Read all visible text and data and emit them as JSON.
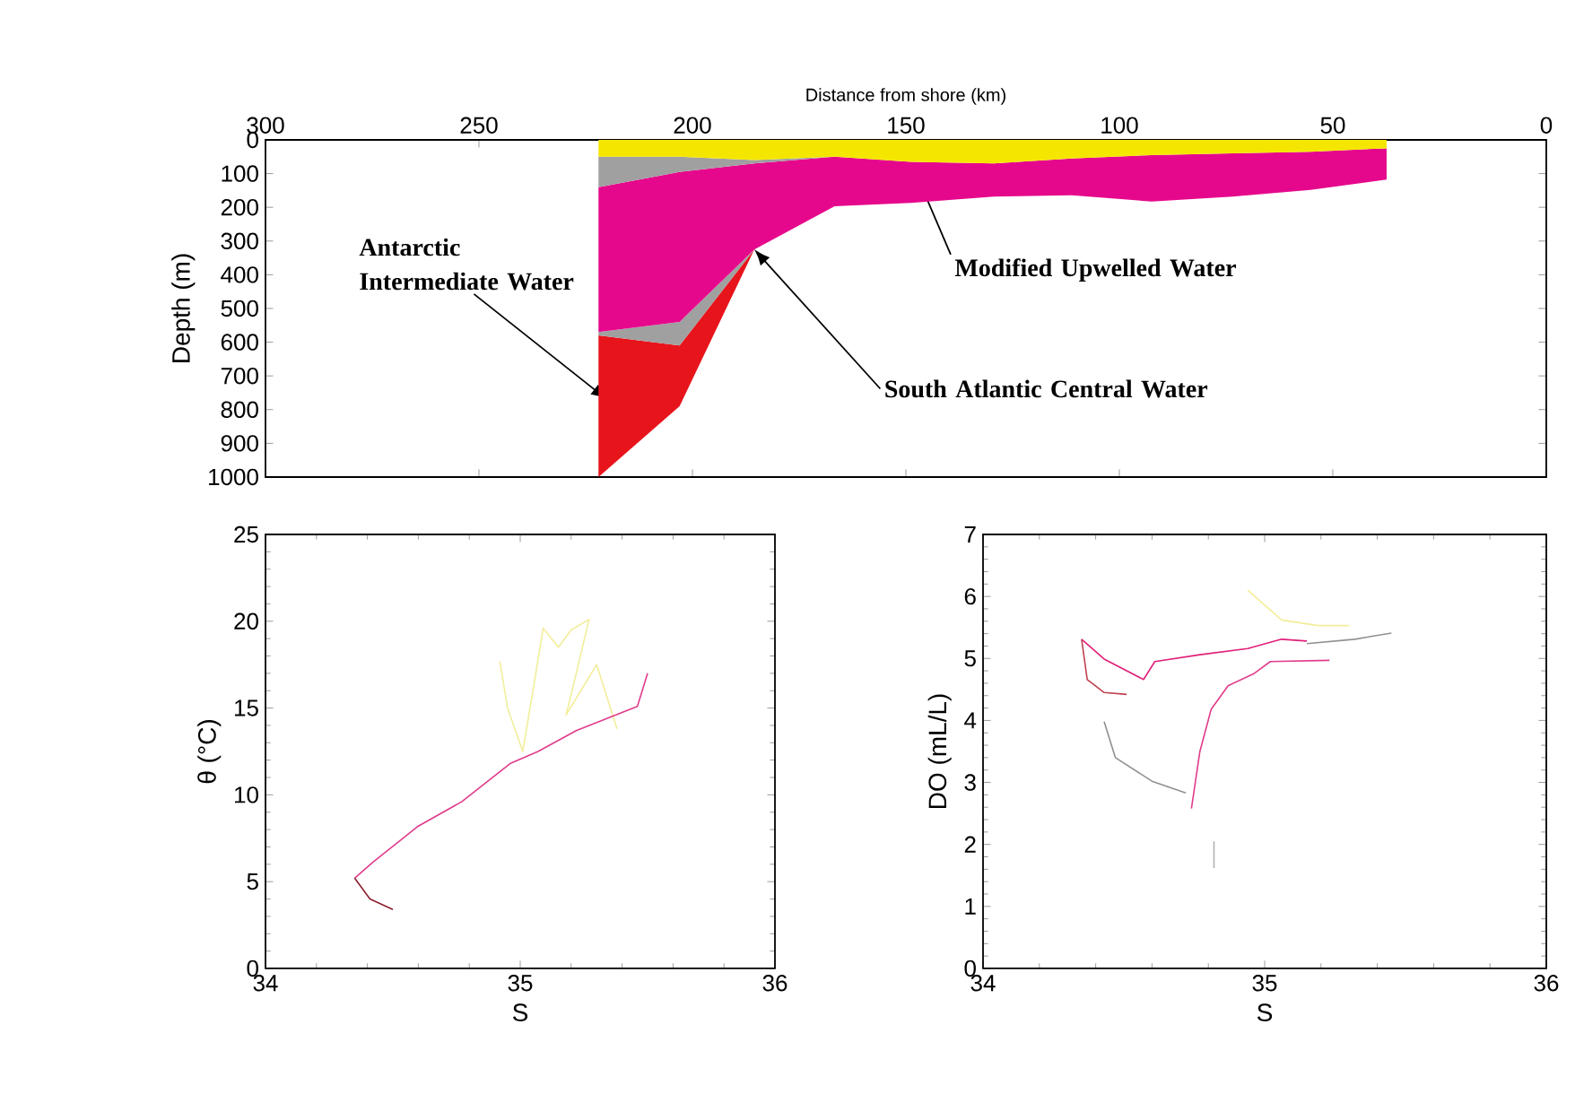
{
  "chart_data": [
    {
      "type": "area",
      "xlabel": "Distance from shore (km)",
      "ylabel": "Depth (m)",
      "stacked": true,
      "x": [
        222,
        203,
        185.5,
        166.7,
        148.8,
        129.4,
        111.2,
        92.4,
        73.5,
        55.2,
        37.4
      ],
      "series": [
        {
          "color": "#f5e600",
          "values": [
            50,
            50,
            60,
            50,
            65,
            70,
            55,
            45,
            40,
            35,
            25
          ]
        },
        {
          "color": "#a0a0a0",
          "values": [
            90,
            45,
            10,
            0,
            0,
            0,
            0,
            0,
            0,
            0,
            0
          ]
        },
        {
          "color": "#e6088c",
          "values": [
            430,
            445,
            255,
            147,
            122,
            98,
            109,
            138,
            128,
            113,
            93
          ]
        },
        {
          "color": "#a0a0a0",
          "values": [
            10,
            70,
            0,
            0,
            0,
            0,
            0,
            0,
            0,
            0,
            0
          ]
        },
        {
          "color": "#e8141c",
          "values": [
            420,
            180,
            0,
            0,
            0,
            0,
            0,
            0,
            0,
            0,
            0
          ]
        }
      ],
      "xlim": [
        300,
        0
      ],
      "ylim": [
        1000,
        0
      ],
      "xticks": [
        300,
        250,
        200,
        150,
        100,
        50,
        0
      ],
      "yticks": [
        0,
        100,
        200,
        300,
        400,
        500,
        600,
        700,
        800,
        900,
        1000
      ],
      "annotations": [
        {
          "text": "Antarctic Intermediate Water",
          "x": 220,
          "y": 770
        },
        {
          "text": "South Atlantic Central Water",
          "x": 185.5,
          "y": 325
        },
        {
          "text": "Modified Upwelled Water",
          "x": 148.8,
          "y": 65
        }
      ]
    },
    {
      "type": "line",
      "xlabel": "S",
      "ylabel": "θ (°C)",
      "series": [
        {
          "color": "#f2ee9a",
          "x": [
            34.92,
            34.95,
            35.01,
            35.05,
            35.09,
            35.15,
            35.2,
            35.27,
            35.22,
            35.18,
            35.3,
            35.38
          ],
          "values": [
            17.7,
            15.0,
            12.5,
            16.0,
            19.6,
            18.5,
            19.5,
            20.1,
            17.0,
            14.6,
            17.5,
            13.8
          ]
        },
        {
          "color": "#e03c8c",
          "x": [
            34.35,
            34.42,
            34.6,
            34.77,
            34.96,
            35.07,
            35.22,
            35.46,
            35.5
          ],
          "values": [
            5.2,
            6.1,
            8.2,
            9.6,
            11.8,
            12.5,
            13.7,
            15.1,
            17.0
          ]
        },
        {
          "color": "#8c2030",
          "x": [
            34.35,
            34.41,
            34.5
          ],
          "values": [
            5.2,
            4.0,
            3.4
          ]
        }
      ],
      "xlim": [
        34,
        36
      ],
      "ylim": [
        0,
        25
      ],
      "xticks": [
        34,
        35,
        36
      ],
      "yticks": [
        0,
        5,
        10,
        15,
        20,
        25
      ]
    },
    {
      "type": "line",
      "xlabel": "S",
      "ylabel": "DO (mL/L)",
      "series": [
        {
          "color": "#f2ee9a",
          "x": [
            34.94,
            35.06,
            35.19,
            35.3
          ],
          "values": [
            6.1,
            5.62,
            5.53,
            5.53
          ]
        },
        {
          "color": "#909090",
          "x": [
            35.15,
            35.32,
            35.45
          ],
          "values": [
            5.24,
            5.31,
            5.41
          ]
        },
        {
          "color": "#e0207a",
          "x": [
            34.35,
            34.43,
            34.57,
            34.61,
            34.77,
            34.94,
            35.06,
            35.15
          ],
          "values": [
            5.31,
            4.99,
            4.66,
            4.95,
            5.06,
            5.16,
            5.31,
            5.28
          ]
        },
        {
          "color": "#c04050",
          "x": [
            34.35,
            34.37,
            34.43,
            34.51
          ],
          "values": [
            5.31,
            4.66,
            4.45,
            4.42
          ]
        },
        {
          "color": "#909090",
          "x": [
            34.43,
            34.47,
            34.6,
            34.72
          ],
          "values": [
            3.98,
            3.4,
            3.02,
            2.83
          ]
        },
        {
          "color": "#e03c8c",
          "x": [
            34.74,
            34.77,
            34.81,
            34.87,
            34.96,
            35.02,
            35.23
          ],
          "values": [
            2.58,
            3.5,
            4.18,
            4.56,
            4.75,
            4.95,
            4.97
          ]
        },
        {
          "color": "#b0b0b0",
          "x": [
            34.82,
            34.82
          ],
          "values": [
            2.05,
            1.62
          ]
        }
      ],
      "xlim": [
        34,
        36
      ],
      "ylim": [
        0,
        7
      ],
      "xticks": [
        34,
        35,
        36
      ],
      "yticks": [
        0,
        1,
        2,
        3,
        4,
        5,
        6,
        7
      ]
    }
  ]
}
